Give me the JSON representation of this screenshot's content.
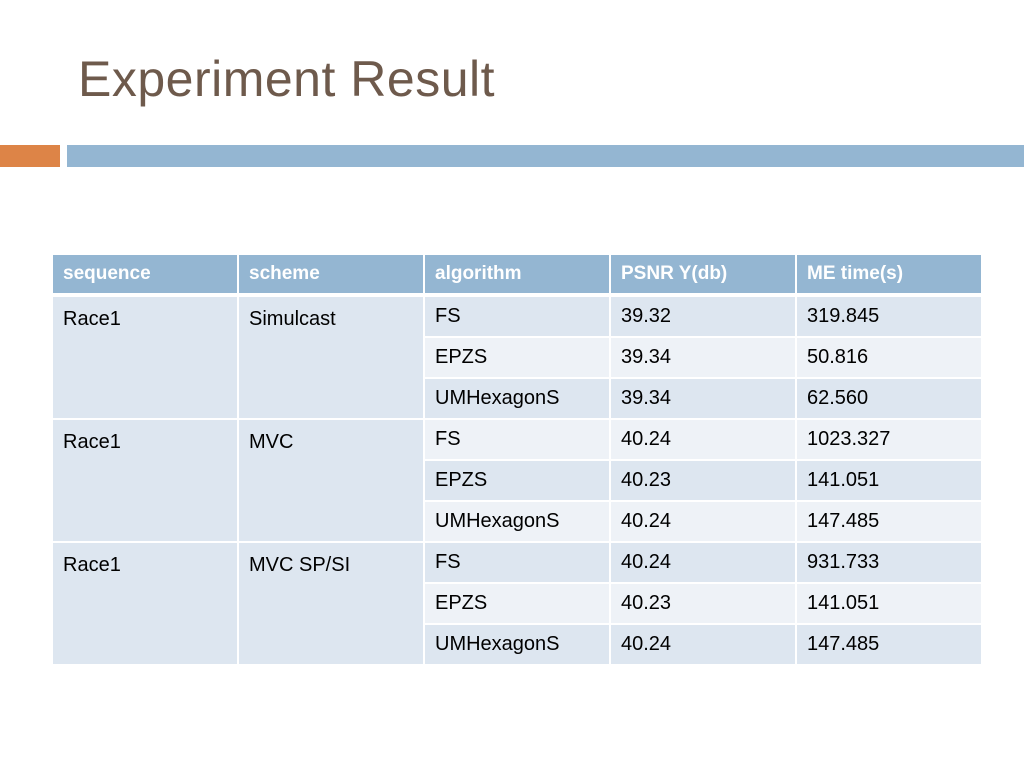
{
  "slide": {
    "title": "Experiment Result"
  },
  "colors": {
    "title": "#6e5a4c",
    "accent_orange": "#dd8447",
    "accent_blue": "#94b6d2",
    "header_bg": "#94b6d2",
    "row_dark": "#dde6f0",
    "row_light": "#eef2f7"
  },
  "table": {
    "headers": [
      "sequence",
      "scheme",
      "algorithm",
      "PSNR Y(db)",
      "ME time(s)"
    ],
    "groups": [
      {
        "sequence": "Race1",
        "scheme": "Simulcast",
        "rows": [
          {
            "algorithm": "FS",
            "psnr": "39.32",
            "me_time": "319.845"
          },
          {
            "algorithm": "EPZS",
            "psnr": "39.34",
            "me_time": "50.816"
          },
          {
            "algorithm": "UMHexagonS",
            "psnr": "39.34",
            "me_time": "62.560"
          }
        ]
      },
      {
        "sequence": "Race1",
        "scheme": "MVC",
        "rows": [
          {
            "algorithm": "FS",
            "psnr": "40.24",
            "me_time": "1023.327"
          },
          {
            "algorithm": "EPZS",
            "psnr": "40.23",
            "me_time": "141.051"
          },
          {
            "algorithm": "UMHexagonS",
            "psnr": "40.24",
            "me_time": "147.485"
          }
        ]
      },
      {
        "sequence": "Race1",
        "scheme": "MVC SP/SI",
        "rows": [
          {
            "algorithm": "FS",
            "psnr": "40.24",
            "me_time": "931.733"
          },
          {
            "algorithm": "EPZS",
            "psnr": "40.23",
            "me_time": "141.051"
          },
          {
            "algorithm": "UMHexagonS",
            "psnr": "40.24",
            "me_time": "147.485"
          }
        ]
      }
    ]
  }
}
